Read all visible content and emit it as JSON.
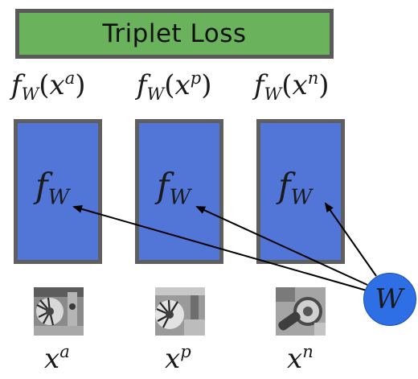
{
  "title": "Triplet Loss",
  "outputs": [
    {
      "fn": "f",
      "sub": "W",
      "arg": "x",
      "sup": "a"
    },
    {
      "fn": "f",
      "sub": "W",
      "arg": "x",
      "sup": "p"
    },
    {
      "fn": "f",
      "sub": "W",
      "arg": "x",
      "sup": "n"
    }
  ],
  "network": {
    "fn": "f",
    "sub": "W"
  },
  "inputs": [
    {
      "var": "x",
      "sup": "a"
    },
    {
      "var": "x",
      "sup": "p"
    },
    {
      "var": "x",
      "sup": "n"
    }
  ],
  "shared_weights": "W",
  "colors": {
    "loss_box": "#6ab25c",
    "network_box": "#5275d8",
    "weights_node": "#2f6fe6",
    "border": "#5a5a5a"
  }
}
